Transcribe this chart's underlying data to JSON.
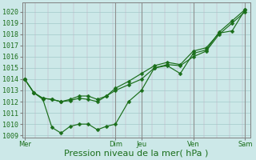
{
  "xlabel": "Pression niveau de la mer( hPa )",
  "bg_color": "#cce8e8",
  "grid_color_h": "#aad0d0",
  "grid_color_v": "#c0a8c0",
  "line_color": "#1a6e1a",
  "xtick_labels": [
    "Mer",
    "Dim",
    "Jeu",
    "Ven",
    "Sam"
  ],
  "xtick_positions": [
    0.0,
    3.5,
    4.5,
    6.5,
    8.5
  ],
  "ylim": [
    1008.8,
    1020.8
  ],
  "yticks": [
    1009,
    1010,
    1011,
    1012,
    1013,
    1014,
    1015,
    1016,
    1017,
    1018,
    1019,
    1020
  ],
  "xlim": [
    -0.1,
    8.7
  ],
  "line1_x": [
    0,
    0.35,
    0.7,
    1.05,
    1.4,
    1.75,
    2.1,
    2.45,
    2.8,
    3.15,
    3.5,
    4.0,
    4.5,
    5.0,
    5.5,
    6.0,
    6.5,
    7.0,
    7.5,
    8.0,
    8.5
  ],
  "line1_y": [
    1014.0,
    1012.8,
    1012.2,
    1009.7,
    1009.2,
    1009.8,
    1010.0,
    1010.0,
    1009.5,
    1009.8,
    1010.0,
    1012.0,
    1013.0,
    1015.0,
    1015.2,
    1014.5,
    1016.3,
    1016.6,
    1018.2,
    1019.2,
    1020.2
  ],
  "line2_x": [
    0,
    0.35,
    0.7,
    1.05,
    1.4,
    1.75,
    2.1,
    2.45,
    2.8,
    3.15,
    3.5,
    4.0,
    4.5,
    5.0,
    5.5,
    6.0,
    6.5,
    7.0,
    7.5,
    8.0,
    8.5
  ],
  "line2_y": [
    1014.0,
    1012.8,
    1012.3,
    1012.2,
    1012.0,
    1012.2,
    1012.5,
    1012.5,
    1012.2,
    1012.5,
    1013.0,
    1013.5,
    1014.0,
    1015.0,
    1015.3,
    1015.2,
    1016.0,
    1016.5,
    1018.0,
    1019.0,
    1020.0
  ],
  "line3_x": [
    0,
    0.35,
    0.7,
    1.05,
    1.4,
    1.75,
    2.1,
    2.45,
    2.8,
    3.15,
    3.5,
    4.0,
    4.5,
    5.0,
    5.5,
    6.0,
    6.5,
    7.0,
    7.5,
    8.0,
    8.5
  ],
  "line3_y": [
    1014.0,
    1012.8,
    1012.3,
    1012.2,
    1012.0,
    1012.1,
    1012.3,
    1012.2,
    1012.0,
    1012.5,
    1013.2,
    1013.8,
    1014.5,
    1015.2,
    1015.5,
    1015.3,
    1016.5,
    1016.8,
    1018.1,
    1018.3,
    1020.2
  ],
  "vlines_x": [
    0.0,
    3.5,
    4.5,
    6.5,
    8.5
  ],
  "xlabel_fontsize": 8,
  "tick_fontsize": 6,
  "figsize": [
    3.2,
    2.0
  ],
  "dpi": 100
}
